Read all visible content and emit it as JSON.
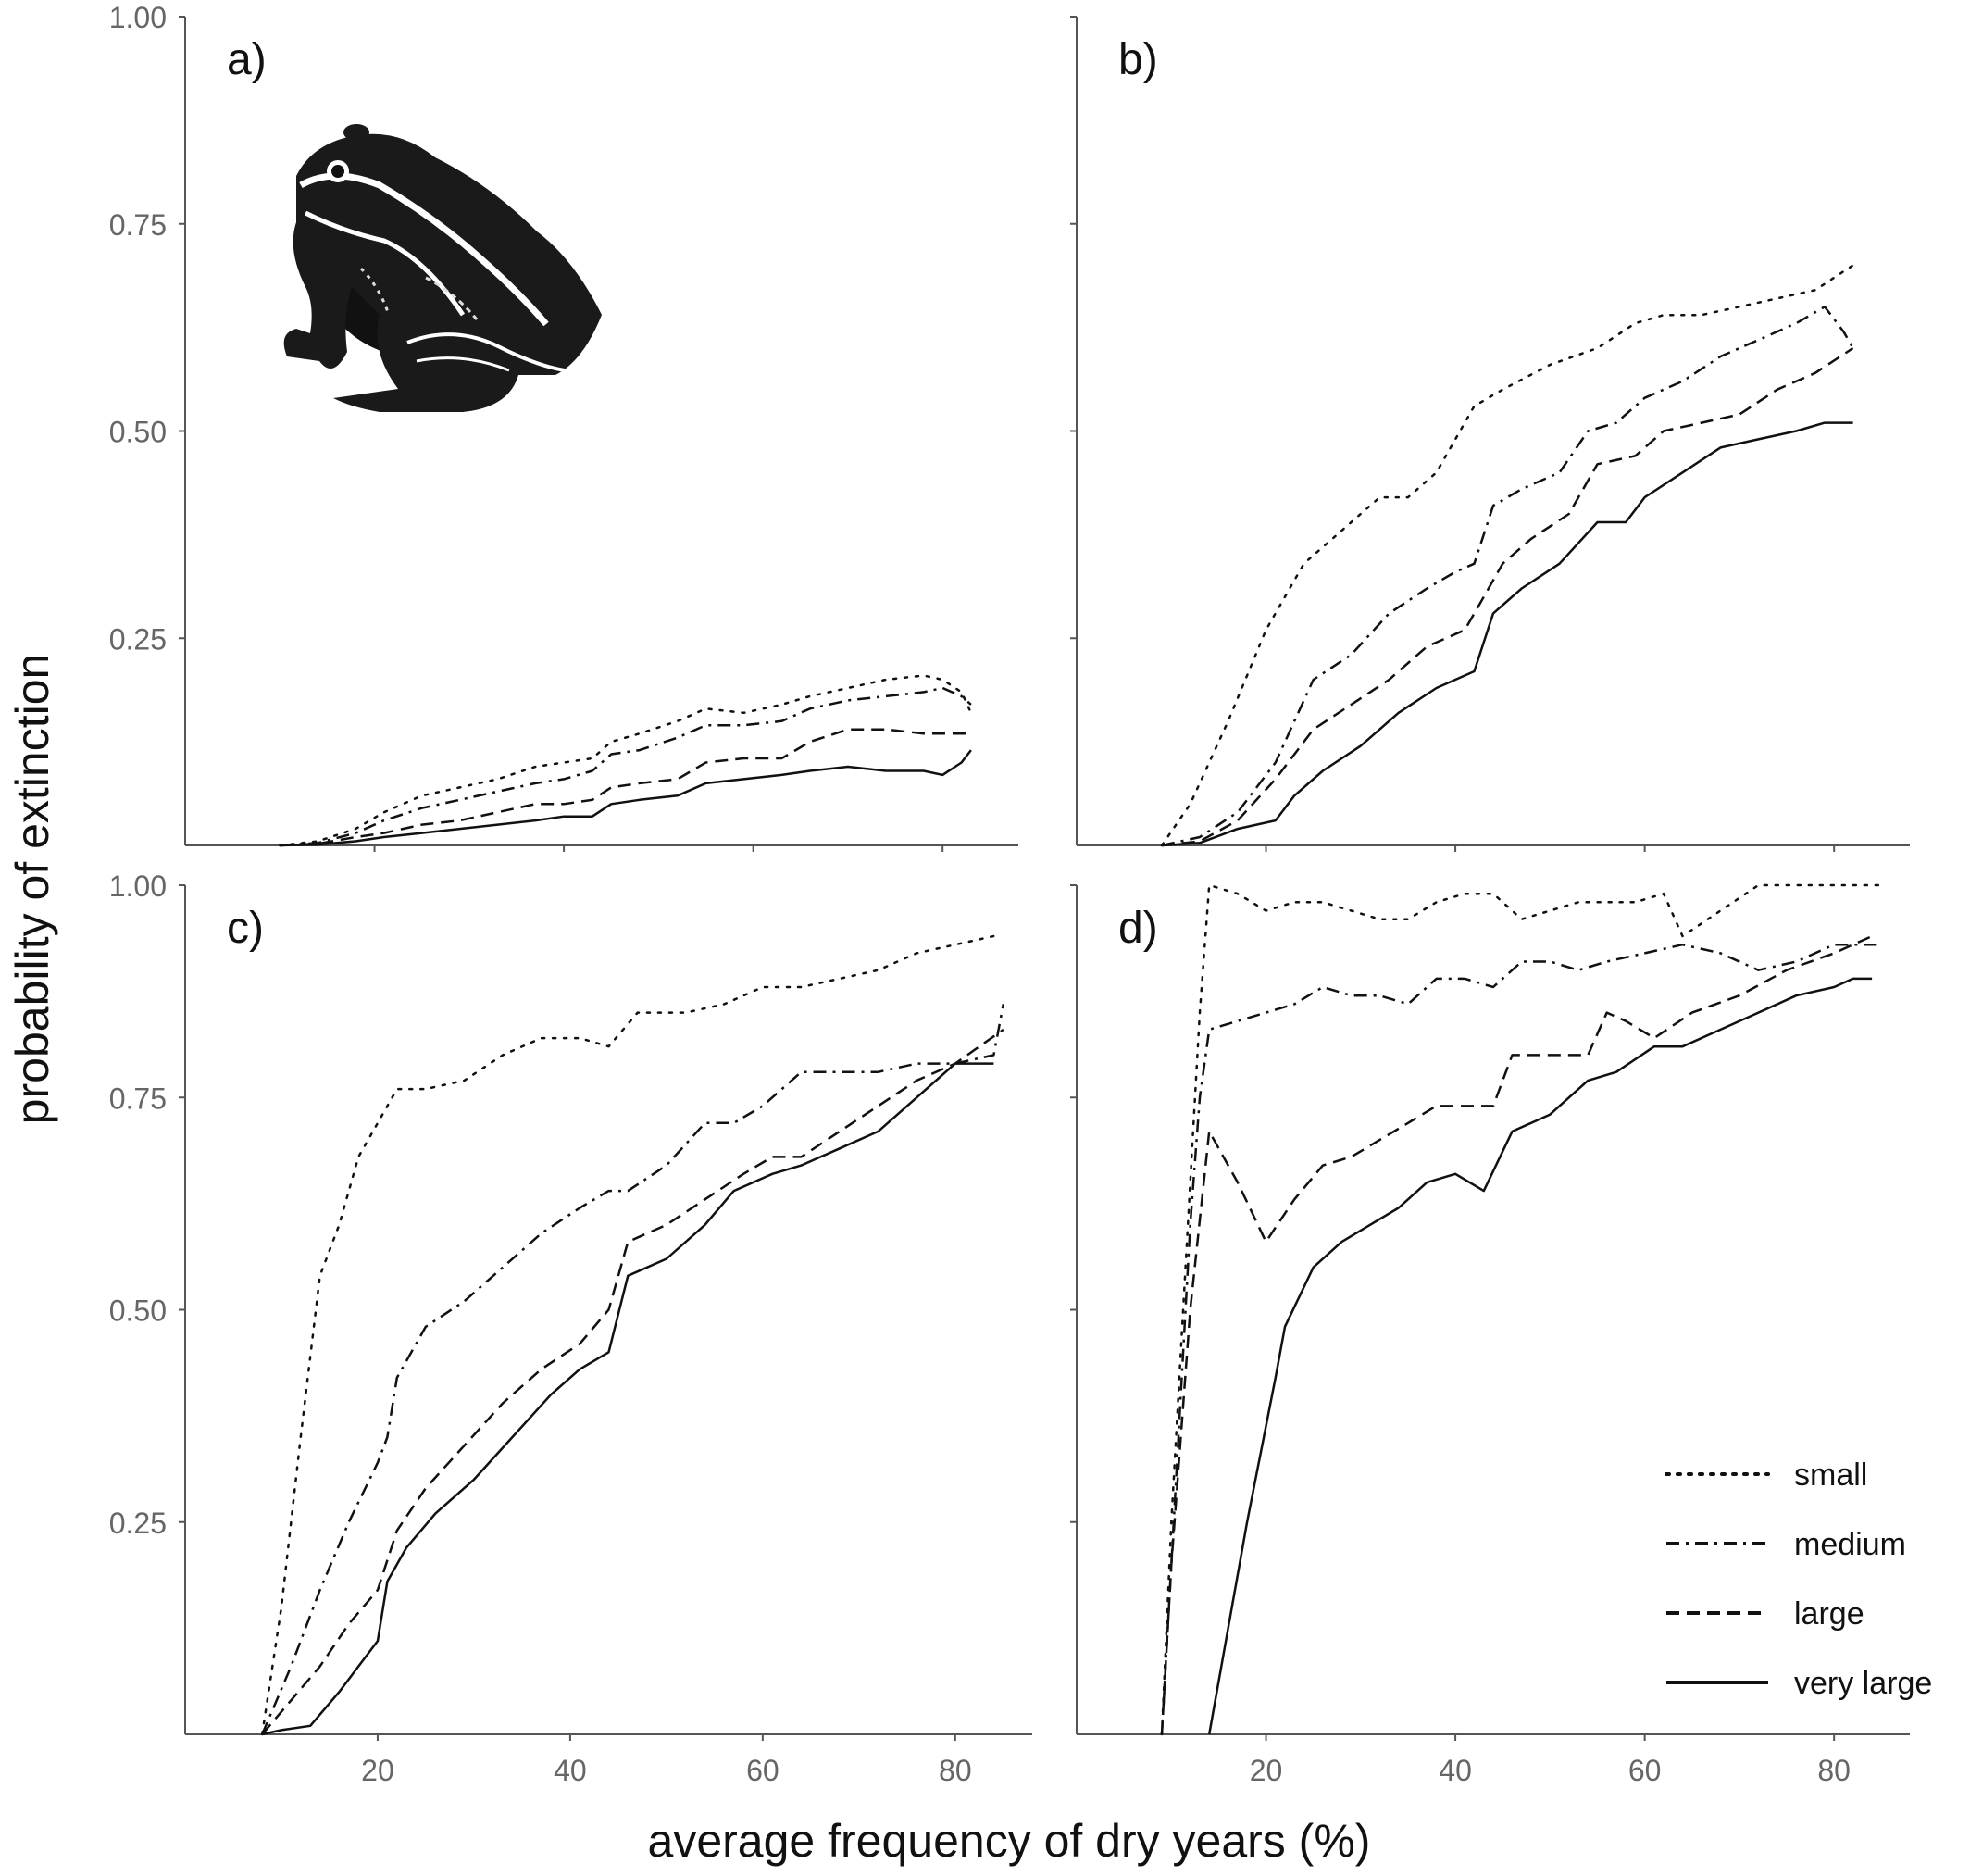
{
  "ylabel": "probability of extinction",
  "xlabel": "average frequency of dry years (%)",
  "legend": {
    "placement": "bottom-right of panel d",
    "entries": [
      {
        "style": "dotted",
        "label": "small"
      },
      {
        "style": "dashdot",
        "label": "medium"
      },
      {
        "style": "dashed",
        "label": "large"
      },
      {
        "style": "solid",
        "label": "very large"
      }
    ]
  },
  "colors": {
    "lines": "#111111",
    "axes": "#555555",
    "ticktext": "#666666"
  },
  "icons": {
    "panel_a": "frog-illustration"
  },
  "chart_data": [
    {
      "type": "line",
      "panel_label": "a)",
      "xlim": [
        0,
        88
      ],
      "ylim": [
        0,
        1
      ],
      "xticks": [
        "20",
        "40",
        "60",
        "80"
      ],
      "yticks": [
        "0.25",
        "0.50",
        "0.75",
        "1.00"
      ],
      "series": [
        {
          "name": "small",
          "x": [
            10,
            14,
            18,
            21,
            25,
            29,
            33,
            37,
            40,
            43,
            45,
            48,
            52,
            55,
            59,
            63,
            66,
            70,
            74,
            78,
            80,
            82,
            83
          ],
          "y": [
            0,
            0.005,
            0.02,
            0.04,
            0.06,
            0.07,
            0.08,
            0.095,
            0.1,
            0.105,
            0.125,
            0.135,
            0.15,
            0.165,
            0.16,
            0.17,
            0.18,
            0.19,
            0.2,
            0.205,
            0.2,
            0.185,
            0.16
          ]
        },
        {
          "name": "medium",
          "x": [
            10,
            14,
            18,
            21,
            25,
            29,
            33,
            37,
            40,
            43,
            45,
            48,
            52,
            55,
            59,
            63,
            66,
            70,
            74,
            78,
            80,
            82,
            83
          ],
          "y": [
            0,
            0.003,
            0.015,
            0.03,
            0.045,
            0.055,
            0.065,
            0.075,
            0.08,
            0.09,
            0.11,
            0.115,
            0.13,
            0.145,
            0.145,
            0.15,
            0.165,
            0.175,
            0.18,
            0.185,
            0.19,
            0.18,
            0.17
          ]
        },
        {
          "name": "large",
          "x": [
            10,
            14,
            18,
            21,
            25,
            29,
            33,
            37,
            40,
            43,
            45,
            48,
            52,
            55,
            59,
            63,
            66,
            70,
            74,
            78,
            80,
            83
          ],
          "y": [
            0,
            0.002,
            0.01,
            0.015,
            0.025,
            0.03,
            0.04,
            0.05,
            0.05,
            0.055,
            0.07,
            0.075,
            0.08,
            0.1,
            0.105,
            0.105,
            0.125,
            0.14,
            0.14,
            0.135,
            0.135,
            0.135
          ]
        },
        {
          "name": "very large",
          "x": [
            10,
            14,
            18,
            21,
            25,
            29,
            33,
            37,
            40,
            43,
            45,
            48,
            52,
            55,
            59,
            63,
            66,
            70,
            74,
            78,
            80,
            82,
            83
          ],
          "y": [
            0,
            0.001,
            0.005,
            0.01,
            0.015,
            0.02,
            0.025,
            0.03,
            0.035,
            0.035,
            0.05,
            0.055,
            0.06,
            0.075,
            0.08,
            0.085,
            0.09,
            0.095,
            0.09,
            0.09,
            0.085,
            0.1,
            0.115
          ]
        }
      ]
    },
    {
      "type": "line",
      "panel_label": "b)",
      "xlim": [
        0,
        88
      ],
      "ylim": [
        0,
        1
      ],
      "xticks": [
        "20",
        "40",
        "60",
        "80"
      ],
      "yticks": [
        "0.25",
        "0.50",
        "0.75",
        "1.00"
      ],
      "series": [
        {
          "name": "small",
          "x": [
            9,
            12,
            16,
            20,
            24,
            28,
            32,
            35,
            38,
            42,
            45,
            50,
            55,
            59,
            62,
            66,
            70,
            74,
            78,
            82
          ],
          "y": [
            0,
            0.05,
            0.15,
            0.26,
            0.34,
            0.38,
            0.42,
            0.42,
            0.45,
            0.53,
            0.55,
            0.58,
            0.6,
            0.63,
            0.64,
            0.64,
            0.65,
            0.66,
            0.67,
            0.7
          ]
        },
        {
          "name": "medium",
          "x": [
            9,
            13,
            17,
            21,
            25,
            29,
            33,
            37,
            40,
            42,
            44,
            47,
            51,
            54,
            57,
            60,
            64,
            68,
            72,
            76,
            79,
            81,
            82
          ],
          "y": [
            0,
            0.01,
            0.04,
            0.1,
            0.2,
            0.23,
            0.28,
            0.31,
            0.33,
            0.34,
            0.41,
            0.43,
            0.45,
            0.5,
            0.51,
            0.54,
            0.56,
            0.59,
            0.61,
            0.63,
            0.65,
            0.62,
            0.6
          ]
        },
        {
          "name": "large",
          "x": [
            9,
            13,
            17,
            21,
            25,
            29,
            33,
            37,
            41,
            43,
            45,
            48,
            52,
            55,
            59,
            62,
            66,
            70,
            74,
            78,
            82
          ],
          "y": [
            0,
            0.005,
            0.03,
            0.08,
            0.14,
            0.17,
            0.2,
            0.24,
            0.26,
            0.3,
            0.34,
            0.37,
            0.4,
            0.46,
            0.47,
            0.5,
            0.51,
            0.52,
            0.55,
            0.57,
            0.6
          ]
        },
        {
          "name": "very large",
          "x": [
            9,
            13,
            17,
            21,
            23,
            26,
            30,
            34,
            38,
            42,
            44,
            47,
            51,
            55,
            58,
            60,
            64,
            68,
            72,
            76,
            79,
            82
          ],
          "y": [
            0,
            0.003,
            0.02,
            0.03,
            0.06,
            0.09,
            0.12,
            0.16,
            0.19,
            0.21,
            0.28,
            0.31,
            0.34,
            0.39,
            0.39,
            0.42,
            0.45,
            0.48,
            0.49,
            0.5,
            0.51,
            0.51
          ]
        }
      ]
    },
    {
      "type": "line",
      "panel_label": "c)",
      "xlim": [
        0,
        88
      ],
      "ylim": [
        0,
        1
      ],
      "xticks": [
        "20",
        "40",
        "60",
        "80"
      ],
      "yticks": [
        "0.25",
        "0.50",
        "0.75",
        "1.00"
      ],
      "series": [
        {
          "name": "small",
          "x": [
            8,
            10,
            12,
            14,
            16,
            18,
            20,
            22,
            25,
            29,
            33,
            37,
            41,
            44,
            47,
            52,
            56,
            60,
            64,
            68,
            72,
            76,
            80,
            84
          ],
          "y": [
            0,
            0.15,
            0.35,
            0.54,
            0.6,
            0.68,
            0.72,
            0.76,
            0.76,
            0.77,
            0.8,
            0.82,
            0.82,
            0.81,
            0.85,
            0.85,
            0.86,
            0.88,
            0.88,
            0.89,
            0.9,
            0.92,
            0.93,
            0.94
          ]
        },
        {
          "name": "medium",
          "x": [
            8,
            11,
            14,
            17,
            20,
            21,
            22,
            25,
            29,
            33,
            37,
            41,
            44,
            46,
            50,
            54,
            57,
            60,
            64,
            68,
            72,
            76,
            80,
            84,
            85
          ],
          "y": [
            0,
            0.08,
            0.17,
            0.25,
            0.32,
            0.35,
            0.42,
            0.48,
            0.51,
            0.55,
            0.59,
            0.62,
            0.64,
            0.64,
            0.67,
            0.72,
            0.72,
            0.74,
            0.78,
            0.78,
            0.78,
            0.79,
            0.79,
            0.8,
            0.86
          ]
        },
        {
          "name": "large",
          "x": [
            8,
            11,
            14,
            17,
            20,
            22,
            25,
            29,
            33,
            37,
            41,
            44,
            46,
            50,
            54,
            58,
            61,
            64,
            68,
            72,
            76,
            80,
            85
          ],
          "y": [
            0,
            0.04,
            0.08,
            0.13,
            0.17,
            0.24,
            0.29,
            0.34,
            0.39,
            0.43,
            0.46,
            0.5,
            0.58,
            0.6,
            0.63,
            0.66,
            0.68,
            0.68,
            0.71,
            0.74,
            0.77,
            0.79,
            0.83
          ]
        },
        {
          "name": "very large",
          "x": [
            8,
            10,
            13,
            16,
            20,
            21,
            23,
            26,
            30,
            34,
            38,
            41,
            44,
            46,
            50,
            54,
            57,
            61,
            64,
            68,
            72,
            76,
            80,
            82,
            84
          ],
          "y": [
            0,
            0.005,
            0.01,
            0.05,
            0.11,
            0.18,
            0.22,
            0.26,
            0.3,
            0.35,
            0.4,
            0.43,
            0.45,
            0.54,
            0.56,
            0.6,
            0.64,
            0.66,
            0.67,
            0.69,
            0.71,
            0.75,
            0.79,
            0.79,
            0.79
          ]
        }
      ]
    },
    {
      "type": "line",
      "panel_label": "d)",
      "xlim": [
        0,
        88
      ],
      "ylim": [
        0,
        1
      ],
      "xticks": [
        "20",
        "40",
        "60",
        "80"
      ],
      "yticks": [
        "0.25",
        "0.50",
        "0.75",
        "1.00"
      ],
      "series": [
        {
          "name": "small",
          "x": [
            9,
            10,
            11,
            12,
            13,
            14,
            17,
            20,
            23,
            26,
            29,
            32,
            35,
            38,
            41,
            44,
            47,
            50,
            53,
            56,
            59,
            62,
            64,
            68,
            72,
            76,
            80,
            84,
            85
          ],
          "y": [
            0,
            0.25,
            0.45,
            0.65,
            0.85,
            1.0,
            0.99,
            0.97,
            0.98,
            0.98,
            0.97,
            0.96,
            0.96,
            0.98,
            0.99,
            0.99,
            0.96,
            0.97,
            0.98,
            0.98,
            0.98,
            0.99,
            0.94,
            0.97,
            1.0,
            1.0,
            1.0,
            1.0,
            1.0
          ]
        },
        {
          "name": "medium",
          "x": [
            9,
            10,
            11,
            12,
            13,
            14,
            17,
            20,
            23,
            26,
            29,
            32,
            35,
            38,
            41,
            44,
            47,
            50,
            53,
            56,
            60,
            64,
            68,
            72,
            76,
            80,
            84,
            85
          ],
          "y": [
            0,
            0.2,
            0.4,
            0.6,
            0.75,
            0.83,
            0.84,
            0.85,
            0.86,
            0.88,
            0.87,
            0.87,
            0.86,
            0.89,
            0.89,
            0.88,
            0.91,
            0.91,
            0.9,
            0.91,
            0.92,
            0.93,
            0.92,
            0.9,
            0.91,
            0.93,
            0.93,
            0.93
          ]
        },
        {
          "name": "large",
          "x": [
            9,
            10,
            12,
            14,
            17,
            20,
            23,
            26,
            29,
            32,
            35,
            38,
            41,
            44,
            46,
            50,
            54,
            56,
            58,
            61,
            65,
            70,
            75,
            80,
            82,
            84
          ],
          "y": [
            0,
            0.2,
            0.5,
            0.71,
            0.65,
            0.58,
            0.63,
            0.67,
            0.68,
            0.7,
            0.72,
            0.74,
            0.74,
            0.74,
            0.8,
            0.8,
            0.8,
            0.85,
            0.84,
            0.82,
            0.85,
            0.87,
            0.9,
            0.92,
            0.93,
            0.94
          ]
        },
        {
          "name": "very large",
          "x": [
            14,
            18,
            21,
            22,
            25,
            28,
            31,
            34,
            37,
            40,
            43,
            46,
            50,
            54,
            57,
            61,
            64,
            68,
            72,
            76,
            80,
            82,
            84
          ],
          "y": [
            0,
            0.25,
            0.42,
            0.48,
            0.55,
            0.58,
            0.6,
            0.62,
            0.65,
            0.66,
            0.64,
            0.71,
            0.73,
            0.77,
            0.78,
            0.81,
            0.81,
            0.83,
            0.85,
            0.87,
            0.88,
            0.89,
            0.89
          ]
        }
      ]
    }
  ]
}
